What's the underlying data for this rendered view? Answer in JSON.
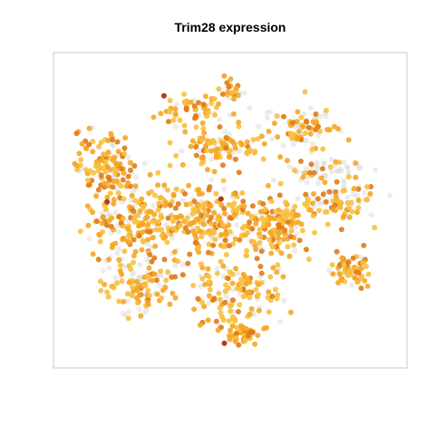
{
  "title": "Trim28 expression",
  "chart_data": {
    "type": "scatter",
    "title": "Trim28 expression",
    "xlabel": "",
    "ylabel": "",
    "xlim": [
      0,
      100
    ],
    "ylim": [
      0,
      100
    ],
    "grid": false,
    "legend": "none",
    "axes_visible": false,
    "colors": {
      "background_cells": "#dcdcdc",
      "low": "#f7c040",
      "mid": "#f5a623",
      "high": "#e07b18",
      "max": "#b23a1e",
      "frame": "#c8c8c8"
    },
    "clusters": [
      {
        "name": "top-center",
        "cx": 38,
        "cy": 84,
        "rx": 10,
        "ry": 5,
        "n": 55,
        "expr_frac": 0.8
      },
      {
        "name": "top-spike",
        "cx": 50,
        "cy": 91,
        "rx": 3,
        "ry": 4,
        "n": 22,
        "expr_frac": 0.7
      },
      {
        "name": "upper-mid",
        "cx": 47,
        "cy": 71,
        "rx": 12,
        "ry": 6,
        "n": 95,
        "expr_frac": 0.85
      },
      {
        "name": "upper-right",
        "cx": 71,
        "cy": 78,
        "rx": 11,
        "ry": 7,
        "n": 85,
        "expr_frac": 0.55
      },
      {
        "name": "right-middle",
        "cx": 82,
        "cy": 53,
        "rx": 11,
        "ry": 6,
        "n": 70,
        "expr_frac": 0.6
      },
      {
        "name": "left-top",
        "cx": 12,
        "cy": 67,
        "rx": 7,
        "ry": 9,
        "n": 105,
        "expr_frac": 0.85
      },
      {
        "name": "left-main",
        "cx": 20,
        "cy": 48,
        "rx": 12,
        "ry": 14,
        "n": 190,
        "expr_frac": 0.8
      },
      {
        "name": "center",
        "cx": 42,
        "cy": 46,
        "rx": 14,
        "ry": 12,
        "n": 230,
        "expr_frac": 0.8
      },
      {
        "name": "center-right",
        "cx": 63,
        "cy": 45,
        "rx": 11,
        "ry": 10,
        "n": 150,
        "expr_frac": 0.8
      },
      {
        "name": "lower-left",
        "cx": 22,
        "cy": 24,
        "rx": 11,
        "ry": 8,
        "n": 120,
        "expr_frac": 0.7
      },
      {
        "name": "lower-center",
        "cx": 52,
        "cy": 22,
        "rx": 12,
        "ry": 9,
        "n": 130,
        "expr_frac": 0.75
      },
      {
        "name": "bottom-spike",
        "cx": 54,
        "cy": 8,
        "rx": 5,
        "ry": 4,
        "n": 45,
        "expr_frac": 0.85
      },
      {
        "name": "right-lower",
        "cx": 85,
        "cy": 30,
        "rx": 6,
        "ry": 6,
        "n": 65,
        "expr_frac": 0.85
      },
      {
        "name": "right-upper-gray",
        "cx": 78,
        "cy": 64,
        "rx": 10,
        "ry": 5,
        "n": 60,
        "expr_frac": 0.3
      }
    ],
    "max_points": [
      {
        "x": 30,
        "y": 89
      },
      {
        "x": 47,
        "y": 54
      },
      {
        "x": 48,
        "y": 5
      },
      {
        "x": 13,
        "y": 53
      }
    ]
  }
}
